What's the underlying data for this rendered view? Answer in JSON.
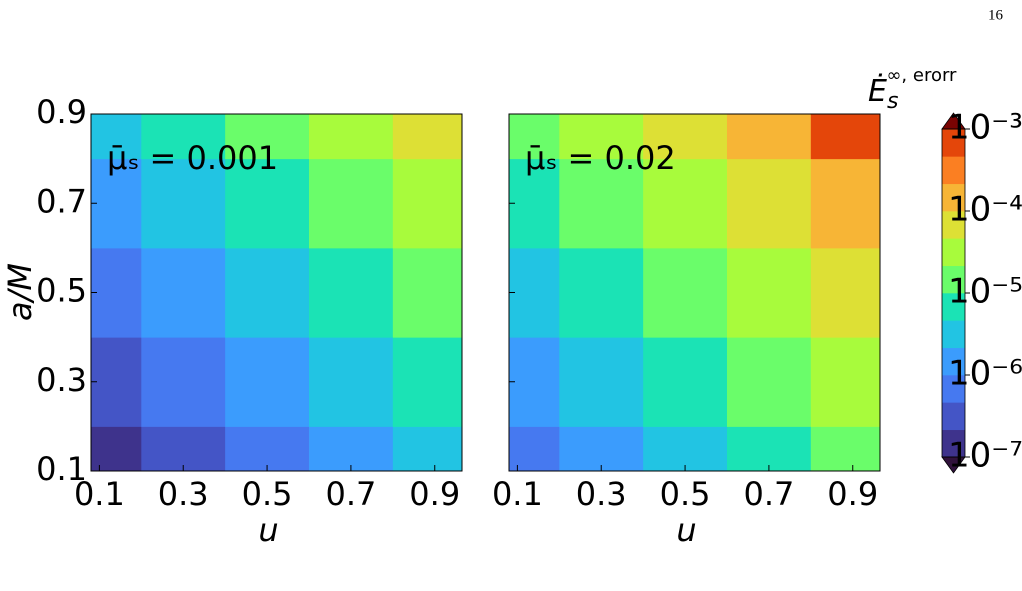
{
  "page_number": "16",
  "chart_data": {
    "type": "contour",
    "ylabel": "a/M",
    "log_scale": true,
    "panels": [
      {
        "annotation": "μ̄ₛ = 0.001",
        "xlabel": "u",
        "x": [
          0.1,
          0.3,
          0.5,
          0.7,
          0.9
        ],
        "y": [
          0.1,
          0.3,
          0.5,
          0.7,
          0.9
        ],
        "z": [
          [
            1.3e-07,
            2.8e-07,
            6.3e-07,
            1.4e-06,
            3.2e-06
          ],
          [
            2.8e-07,
            6.3e-07,
            1.4e-06,
            3.2e-06,
            7.1e-06
          ],
          [
            6.3e-07,
            1.4e-06,
            3.2e-06,
            7.1e-06,
            1.6e-05
          ],
          [
            1.4e-06,
            3.2e-06,
            7.1e-06,
            1.6e-05,
            3.5e-05
          ],
          [
            3.2e-06,
            7.1e-06,
            1.6e-05,
            3.5e-05,
            7.9e-05
          ]
        ],
        "xlim": [
          0.08,
          0.965
        ],
        "ylim": [
          0.1,
          0.9
        ],
        "xticks": [
          0.1,
          0.3,
          0.5,
          0.7,
          0.9
        ],
        "yticks": [
          0.1,
          0.3,
          0.5,
          0.7,
          0.9
        ],
        "ytick_labels": true
      },
      {
        "annotation": "μ̄ₛ = 0.02",
        "xlabel": "u",
        "x": [
          0.1,
          0.3,
          0.5,
          0.7,
          0.9
        ],
        "y": [
          0.1,
          0.3,
          0.5,
          0.7,
          0.9
        ],
        "z": [
          [
            6.3e-07,
            1.4e-06,
            3.3e-06,
            7.6e-06,
            1.7e-05
          ],
          [
            1.4e-06,
            3.3e-06,
            7.6e-06,
            1.7e-05,
            4e-05
          ],
          [
            3.3e-06,
            7.6e-06,
            1.7e-05,
            4e-05,
            9.1e-05
          ],
          [
            7.6e-06,
            1.7e-05,
            4e-05,
            9.1e-05,
            0.00021
          ],
          [
            1.7e-05,
            4e-05,
            9.1e-05,
            0.00021,
            0.00048
          ]
        ],
        "xlim": [
          0.08,
          0.965
        ],
        "ylim": [
          0.1,
          0.9
        ],
        "xticks": [
          0.1,
          0.3,
          0.5,
          0.7,
          0.9
        ],
        "yticks": [
          0.1,
          0.3,
          0.5,
          0.7,
          0.9
        ],
        "ytick_labels": false
      }
    ],
    "colorbar": {
      "label": {
        "base": "Ė",
        "sub": "s",
        "sup": "∞, erorr"
      },
      "lim": [
        1e-07,
        0.001
      ],
      "levels": [
        1e-07,
        2.15e-07,
        4.64e-07,
        1e-06,
        2.15e-06,
        4.64e-06,
        1e-05,
        2.15e-05,
        4.64e-05,
        0.0001,
        0.000215,
        0.000464,
        0.001
      ],
      "colors": [
        "#3e338c",
        "#4455c6",
        "#4679f0",
        "#3b9cfd",
        "#22c4e3",
        "#1be3b5",
        "#6afd6a",
        "#a8fb3c",
        "#dde035",
        "#f7b536",
        "#fb7f22",
        "#e4460a",
        "#a01601"
      ],
      "under_color": "#30123b",
      "over_color": "#7a0403",
      "ticks": [
        {
          "value": 1e-07,
          "label": "10⁻⁷"
        },
        {
          "value": 1e-06,
          "label": "10⁻⁶"
        },
        {
          "value": 1e-05,
          "label": "10⁻⁵"
        },
        {
          "value": 0.0001,
          "label": "10⁻⁴"
        },
        {
          "value": 0.001,
          "label": "10⁻³"
        }
      ]
    }
  }
}
